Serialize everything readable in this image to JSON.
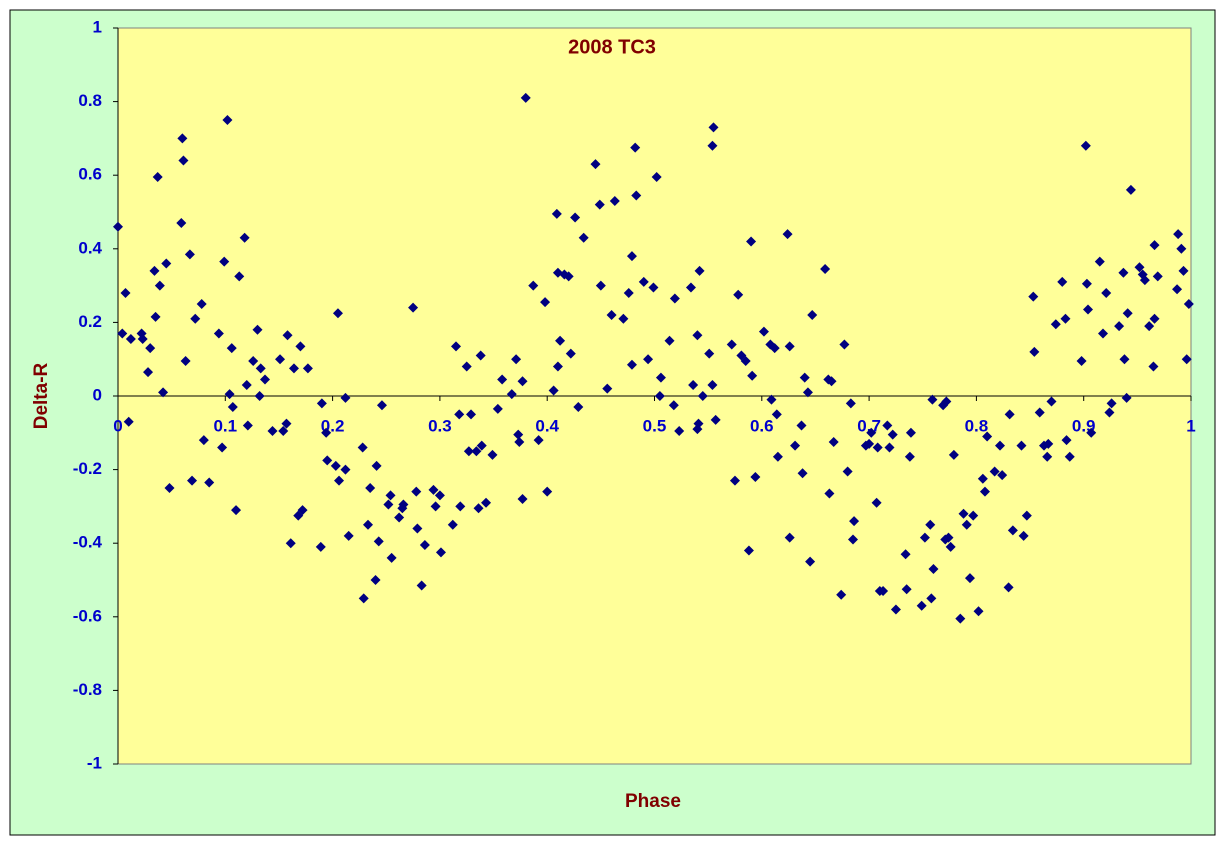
{
  "chart_data": {
    "type": "scatter",
    "title": "2008 TC3",
    "x_label": "Phase",
    "y_label": "Delta-R",
    "color": "#000080",
    "xlim": [
      0,
      1
    ],
    "ylim": [
      -1,
      1
    ],
    "xticks": [
      0,
      0.1,
      0.2,
      0.3,
      0.4,
      0.5,
      0.6,
      0.7,
      0.8,
      0.9,
      1
    ],
    "yticks": [
      -1,
      -0.8,
      -0.6,
      -0.4,
      -0.2,
      0,
      0.2,
      0.4,
      0.6,
      0.8,
      1
    ],
    "x": [
      0.0,
      0.004,
      0.007,
      0.01,
      0.012,
      0.022,
      0.023,
      0.028,
      0.03,
      0.034,
      0.035,
      0.037,
      0.039,
      0.042,
      0.045,
      0.048,
      0.059,
      0.06,
      0.061,
      0.063,
      0.067,
      0.069,
      0.072,
      0.078,
      0.08,
      0.085,
      0.094,
      0.097,
      0.099,
      0.102,
      0.104,
      0.106,
      0.107,
      0.11,
      0.113,
      0.118,
      0.12,
      0.121,
      0.126,
      0.13,
      0.132,
      0.133,
      0.137,
      0.144,
      0.151,
      0.154,
      0.157,
      0.158,
      0.161,
      0.164,
      0.168,
      0.17,
      0.172,
      0.177,
      0.189,
      0.19,
      0.194,
      0.195,
      0.203,
      0.205,
      0.206,
      0.212,
      0.212,
      0.215,
      0.228,
      0.229,
      0.233,
      0.235,
      0.24,
      0.241,
      0.243,
      0.246,
      0.252,
      0.254,
      0.255,
      0.262,
      0.265,
      0.266,
      0.275,
      0.278,
      0.279,
      0.283,
      0.286,
      0.294,
      0.296,
      0.3,
      0.301,
      0.312,
      0.315,
      0.318,
      0.319,
      0.325,
      0.327,
      0.329,
      0.334,
      0.336,
      0.338,
      0.339,
      0.343,
      0.349,
      0.354,
      0.358,
      0.367,
      0.371,
      0.373,
      0.374,
      0.377,
      0.377,
      0.38,
      0.387,
      0.392,
      0.398,
      0.4,
      0.406,
      0.409,
      0.41,
      0.412,
      0.41,
      0.416,
      0.42,
      0.422,
      0.426,
      0.429,
      0.434,
      0.445,
      0.449,
      0.45,
      0.456,
      0.46,
      0.463,
      0.471,
      0.476,
      0.479,
      0.479,
      0.482,
      0.483,
      0.49,
      0.494,
      0.499,
      0.502,
      0.505,
      0.506,
      0.514,
      0.518,
      0.519,
      0.523,
      0.534,
      0.536,
      0.54,
      0.54,
      0.541,
      0.542,
      0.545,
      0.551,
      0.554,
      0.554,
      0.555,
      0.557,
      0.572,
      0.575,
      0.578,
      0.581,
      0.585,
      0.588,
      0.59,
      0.591,
      0.594,
      0.602,
      0.608,
      0.609,
      0.612,
      0.614,
      0.615,
      0.624,
      0.626,
      0.626,
      0.631,
      0.637,
      0.638,
      0.64,
      0.643,
      0.645,
      0.647,
      0.659,
      0.662,
      0.663,
      0.665,
      0.667,
      0.674,
      0.677,
      0.68,
      0.683,
      0.685,
      0.686,
      0.697,
      0.7,
      0.702,
      0.707,
      0.708,
      0.71,
      0.713,
      0.717,
      0.719,
      0.722,
      0.725,
      0.734,
      0.735,
      0.738,
      0.739,
      0.749,
      0.752,
      0.757,
      0.758,
      0.759,
      0.76,
      0.769,
      0.771,
      0.772,
      0.774,
      0.776,
      0.779,
      0.785,
      0.788,
      0.791,
      0.794,
      0.797,
      0.802,
      0.806,
      0.808,
      0.81,
      0.817,
      0.822,
      0.824,
      0.83,
      0.831,
      0.834,
      0.842,
      0.844,
      0.847,
      0.853,
      0.854,
      0.859,
      0.863,
      0.866,
      0.867,
      0.87,
      0.874,
      0.88,
      0.883,
      0.884,
      0.887,
      0.898,
      0.902,
      0.903,
      0.904,
      0.907,
      0.915,
      0.918,
      0.921,
      0.924,
      0.926,
      0.933,
      0.937,
      0.938,
      0.94,
      0.941,
      0.944,
      0.952,
      0.955,
      0.957,
      0.961,
      0.965,
      0.966,
      0.966,
      0.969,
      0.987,
      0.988,
      0.991,
      0.993,
      0.996,
      0.998
    ],
    "values": [
      0.46,
      0.17,
      0.28,
      -0.07,
      0.155,
      0.17,
      0.155,
      0.065,
      0.13,
      0.34,
      0.215,
      0.595,
      0.3,
      0.01,
      0.36,
      -0.25,
      0.47,
      0.7,
      0.64,
      0.095,
      0.385,
      -0.23,
      0.21,
      0.25,
      -0.12,
      -0.235,
      0.17,
      -0.14,
      0.365,
      0.75,
      0.005,
      0.13,
      -0.03,
      -0.31,
      0.325,
      0.43,
      0.03,
      -0.08,
      0.095,
      0.18,
      0,
      0.075,
      0.045,
      -0.095,
      0.1,
      -0.095,
      -0.075,
      0.165,
      -0.4,
      0.075,
      -0.325,
      0.135,
      -0.31,
      0.075,
      -0.41,
      -0.02,
      -0.1,
      -0.175,
      -0.19,
      0.225,
      -0.23,
      -0.2,
      -0.005,
      -0.38,
      -0.14,
      -0.55,
      -0.35,
      -0.25,
      -0.5,
      -0.19,
      -0.395,
      -0.025,
      -0.295,
      -0.27,
      -0.44,
      -0.33,
      -0.305,
      -0.295,
      0.24,
      -0.26,
      -0.36,
      -0.515,
      -0.405,
      -0.255,
      -0.3,
      -0.27,
      -0.425,
      -0.35,
      0.135,
      -0.05,
      -0.3,
      0.08,
      -0.15,
      -0.05,
      -0.15,
      -0.305,
      0.11,
      -0.135,
      -0.29,
      -0.16,
      -0.035,
      0.045,
      0.005,
      0.1,
      -0.105,
      -0.125,
      -0.28,
      0.04,
      0.81,
      0.3,
      -0.12,
      0.255,
      -0.26,
      0.015,
      0.495,
      0.335,
      0.15,
      0.08,
      0.33,
      0.325,
      0.115,
      0.485,
      -0.03,
      0.43,
      0.63,
      0.52,
      0.3,
      0.02,
      0.22,
      0.53,
      0.21,
      0.28,
      0.38,
      0.085,
      0.675,
      0.545,
      0.31,
      0.1,
      0.295,
      0.595,
      0,
      0.05,
      0.15,
      -0.025,
      0.265,
      -0.095,
      0.295,
      0.03,
      0.165,
      -0.09,
      -0.075,
      0.34,
      0,
      0.115,
      0.03,
      0.68,
      0.73,
      -0.065,
      0.14,
      -0.23,
      0.275,
      0.11,
      0.095,
      -0.42,
      0.42,
      0.055,
      -0.22,
      0.175,
      0.14,
      -0.01,
      0.13,
      -0.05,
      -0.165,
      0.44,
      0.135,
      -0.385,
      -0.135,
      -0.08,
      -0.21,
      0.05,
      0.01,
      -0.45,
      0.22,
      0.345,
      0.045,
      -0.265,
      0.04,
      -0.125,
      -0.54,
      0.14,
      -0.205,
      -0.02,
      -0.39,
      -0.34,
      -0.135,
      -0.13,
      -0.1,
      -0.29,
      -0.14,
      -0.53,
      -0.53,
      -0.08,
      -0.14,
      -0.105,
      -0.58,
      -0.43,
      -0.525,
      -0.165,
      -0.1,
      -0.57,
      -0.385,
      -0.35,
      -0.55,
      -0.01,
      -0.47,
      -0.025,
      -0.39,
      -0.015,
      -0.385,
      -0.41,
      -0.16,
      -0.605,
      -0.32,
      -0.35,
      -0.495,
      -0.325,
      -0.585,
      -0.225,
      -0.26,
      -0.11,
      -0.205,
      -0.135,
      -0.215,
      -0.52,
      -0.05,
      -0.365,
      -0.135,
      -0.38,
      -0.325,
      0.27,
      0.12,
      -0.045,
      -0.135,
      -0.165,
      -0.13,
      -0.015,
      0.195,
      0.31,
      0.21,
      -0.12,
      -0.165,
      0.095,
      0.68,
      0.305,
      0.235,
      -0.1,
      0.365,
      0.17,
      0.28,
      -0.045,
      -0.02,
      0.19,
      0.335,
      0.1,
      -0.005,
      0.225,
      0.56,
      0.35,
      0.33,
      0.315,
      0.19,
      0.08,
      0.21,
      0.41,
      0.325,
      0.29,
      0.44,
      0.4,
      0.34,
      0.1,
      0.25
    ]
  }
}
